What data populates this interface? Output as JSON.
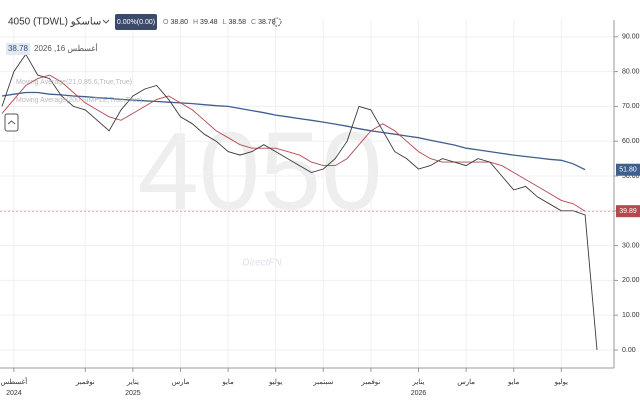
{
  "header": {
    "symbol": "4050 (TDWL) ساسكو",
    "change": "0.00%(0.00)",
    "ohlc": [
      "O",
      "38.80",
      "H",
      "39.48",
      "L",
      "38.58",
      "C",
      "38.78"
    ],
    "last_price": "38.78",
    "date": "أغسطس 16, 2026",
    "watermark": "4050",
    "brand": "DirectFN"
  },
  "chart_data": {
    "type": "line",
    "categories": [
      null,
      "أغسطس",
      null,
      null,
      null,
      null,
      null,
      "نوفمبر",
      null,
      null,
      null,
      "يناير",
      null,
      null,
      null,
      "مارس",
      null,
      null,
      null,
      "مايو",
      null,
      null,
      null,
      "يوليو",
      null,
      null,
      null,
      "سبتمبر",
      null,
      null,
      null,
      "نوفمبر",
      null,
      null,
      null,
      "يناير",
      null,
      null,
      null,
      "مارس",
      null,
      null,
      null,
      "مايو",
      null,
      null,
      null,
      "يوليو",
      null,
      null,
      null
    ],
    "years": [
      null,
      "2024",
      null,
      null,
      null,
      null,
      null,
      null,
      null,
      null,
      null,
      "2025",
      null,
      null,
      null,
      null,
      null,
      null,
      null,
      null,
      null,
      null,
      null,
      null,
      null,
      null,
      null,
      null,
      null,
      null,
      null,
      null,
      null,
      null,
      null,
      "2026",
      null,
      null,
      null,
      null,
      null,
      null,
      null,
      null,
      null,
      null,
      null,
      null,
      null,
      null,
      null
    ],
    "series": [
      {
        "name": "Moving Average(200,SIMPLE,True,True)",
        "color": "#3f5f8f",
        "last_label": "51.80",
        "values": [
          73,
          73.5,
          74,
          74,
          73.5,
          73.3,
          73,
          72.8,
          72.5,
          72.3,
          72,
          71.8,
          71.6,
          71.4,
          71.2,
          71,
          70.8,
          70.5,
          70.2,
          70,
          69.4,
          68.8,
          68.2,
          67.5,
          67,
          66.5,
          66,
          65.5,
          64.9,
          64.3,
          63.6,
          63,
          62.5,
          62,
          61.5,
          61,
          60.3,
          59.6,
          58.9,
          58,
          57.5,
          57,
          56.5,
          56,
          55.6,
          55.2,
          54.8,
          54.5,
          53.5,
          51.8,
          null
        ]
      },
      {
        "name": "Moving Average(21,0,85.6,True,True)",
        "color": "#b5474f",
        "last_label": "39.89",
        "values": [
          68,
          72,
          76,
          78,
          79,
          77,
          74,
          71,
          69,
          67,
          66,
          68,
          70,
          72,
          73,
          71,
          69,
          66,
          63,
          61,
          59,
          58,
          58,
          58,
          57,
          56,
          54,
          53,
          53,
          55,
          59,
          63,
          65,
          63,
          60,
          57,
          55,
          54,
          54,
          54,
          54,
          54,
          53,
          51,
          49,
          47,
          45,
          43,
          42,
          39.89,
          null
        ]
      },
      {
        "name": "4050",
        "color": "#3a3a3a",
        "values": [
          70,
          80,
          85,
          79,
          78,
          73,
          70,
          69,
          66,
          63,
          69,
          73,
          75,
          76,
          72,
          67,
          65,
          62,
          60,
          57,
          56,
          57,
          59,
          57,
          55,
          53,
          51,
          52,
          55,
          60,
          70,
          69,
          63,
          57,
          55,
          52,
          53,
          55,
          54,
          53,
          55,
          54,
          50,
          46,
          47,
          44,
          42,
          40,
          40,
          38.78,
          0
        ]
      }
    ],
    "ylim": [
      -5,
      95
    ],
    "yticks": [
      {
        "value": 0,
        "label": "0.00"
      },
      {
        "value": 10,
        "label": "10.00"
      },
      {
        "value": 20,
        "label": "20.00"
      },
      {
        "value": 30,
        "label": "30.00"
      },
      {
        "value": 40,
        "label": "40.00"
      },
      {
        "value": 50,
        "label": "50.00"
      },
      {
        "value": 60,
        "label": "60.00"
      },
      {
        "value": 70,
        "label": "70.00"
      },
      {
        "value": 80,
        "label": "80.00"
      },
      {
        "value": 90,
        "label": "90.00"
      }
    ],
    "grid": true
  }
}
